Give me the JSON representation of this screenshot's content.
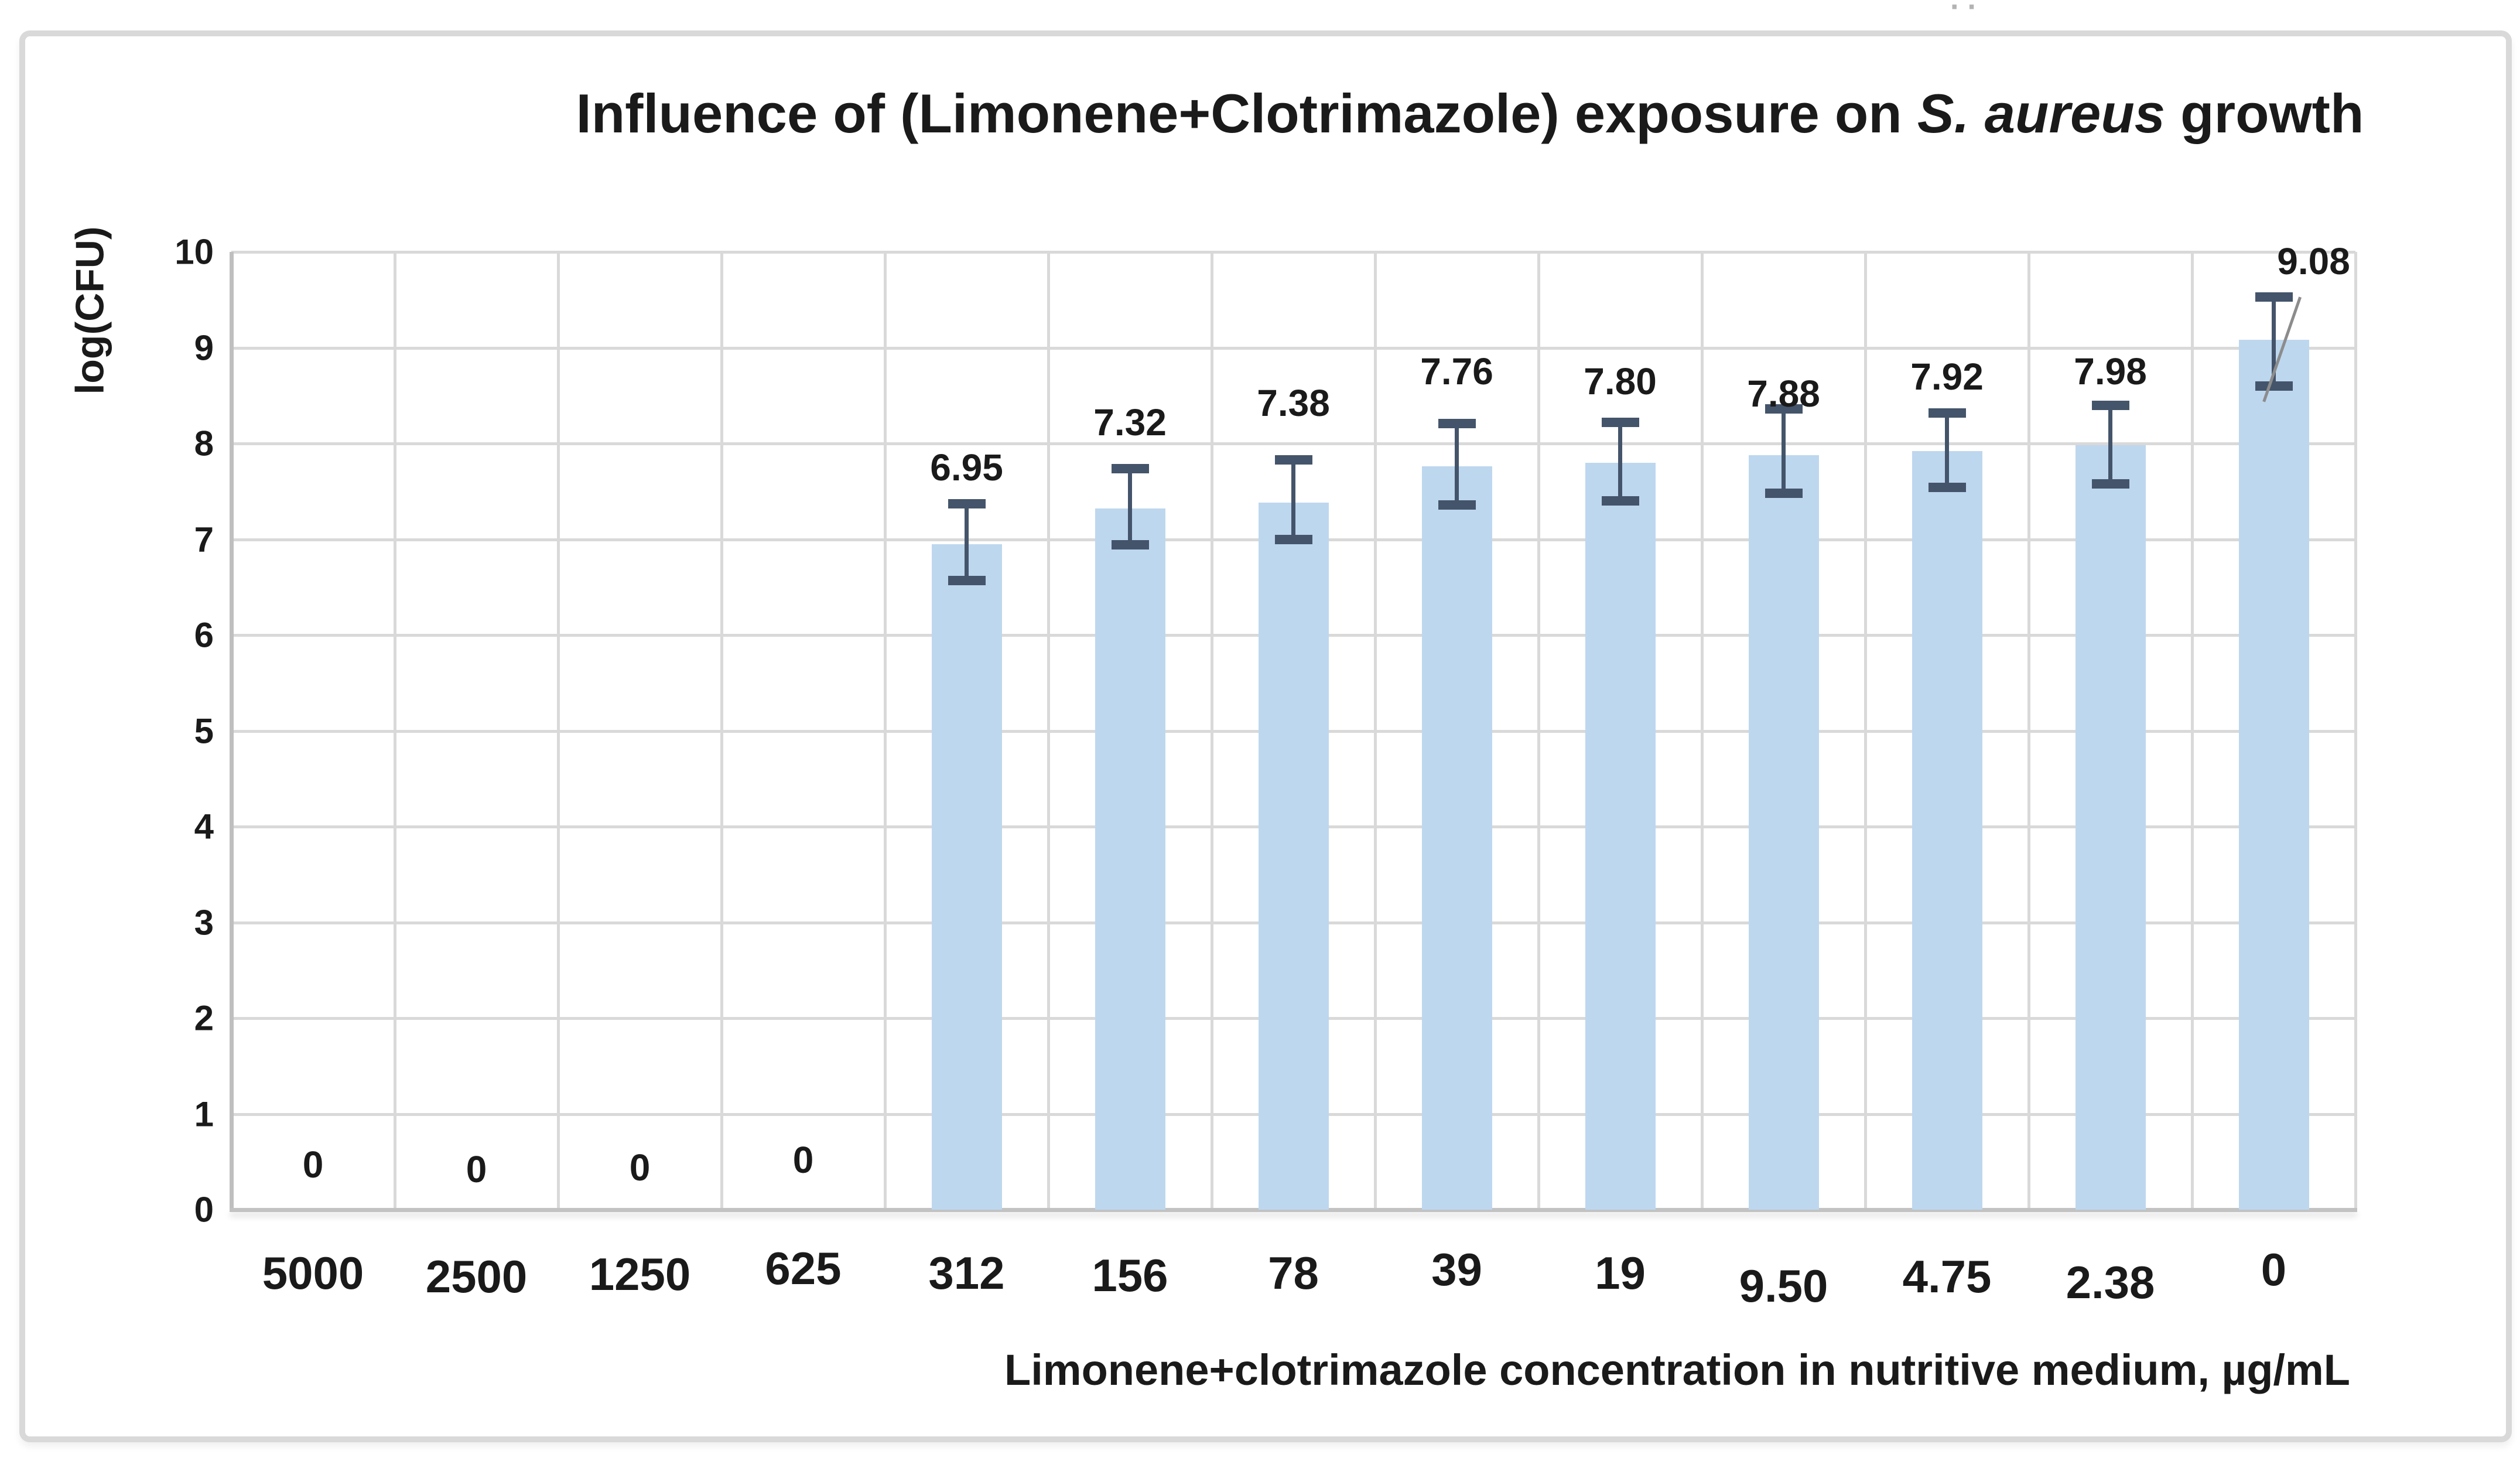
{
  "frame": {
    "background": "#ffffff",
    "border_color": "#d9d9d9",
    "artifact_dots": "··"
  },
  "chart_data": {
    "type": "bar",
    "title": "Influence of (Limonene+Clotrimazole) exposure on S. aureus growth",
    "title_parts": [
      {
        "text": "Influence of (Limonene+Clotrimazole) exposure on ",
        "italic": false
      },
      {
        "text": "S. aureus",
        "italic": true
      },
      {
        "text": " growth",
        "italic": false
      }
    ],
    "xlabel": "Limonene+clotrimazole concentration in nutritive medium, µg/mL",
    "ylabel": "log(CFU)",
    "categories": [
      "5000",
      "2500",
      "1250",
      "625",
      "312",
      "156",
      "78",
      "39",
      "19",
      "9.50",
      "4.75",
      "2.38",
      "0"
    ],
    "values": [
      0,
      0,
      0,
      0,
      6.95,
      7.32,
      7.38,
      7.76,
      7.8,
      7.88,
      7.92,
      7.98,
      9.08
    ],
    "bar_labels": [
      "0",
      "0",
      "0",
      "0",
      "6.95",
      "7.32",
      "7.38",
      "7.76",
      "7.80",
      "7.88",
      "7.92",
      "7.98",
      "9.08"
    ],
    "error_up": [
      0,
      0,
      0,
      0,
      0.42,
      0.42,
      0.45,
      0.45,
      0.42,
      0.48,
      0.4,
      0.42,
      0.45
    ],
    "error_down": [
      0,
      0,
      0,
      0,
      0.38,
      0.38,
      0.38,
      0.4,
      0.4,
      0.4,
      0.38,
      0.4,
      0.48
    ],
    "label_y": [
      0.47,
      0.42,
      0.44,
      0.52,
      7.75,
      8.22,
      8.42,
      8.75,
      8.65,
      8.52,
      8.7,
      8.75,
      9.9
    ],
    "label_dx": [
      0,
      0,
      0,
      0,
      0,
      0,
      0,
      0,
      0,
      0,
      0,
      0,
      68
    ],
    "tick_dy": [
      0,
      6,
      2,
      -8,
      0,
      4,
      0,
      -6,
      0,
      22,
      6,
      16,
      -6
    ],
    "ylim": [
      0,
      10
    ],
    "yticks": [
      0,
      1,
      2,
      3,
      4,
      5,
      6,
      7,
      8,
      9,
      10
    ],
    "grid": "both",
    "legend_position": "none",
    "bar_color": "#bdd7ee",
    "error_bar_color": "#44546a",
    "gridline_color": "#d9d9d9",
    "axis_line_color": "#bfbfbf",
    "text_color": "#1a1a1a",
    "leader_line": {
      "bar_index": 12
    }
  }
}
